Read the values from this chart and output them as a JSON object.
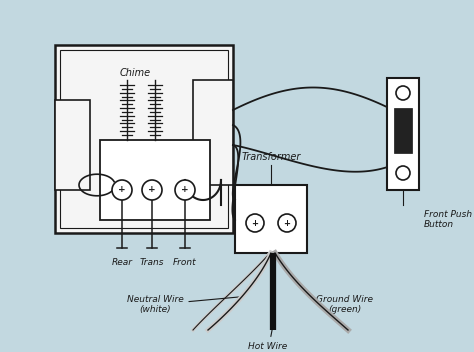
{
  "bg_color": "#c2d8e0",
  "line_color": "#1a1a1a",
  "box_fill": "#f5f5f5",
  "white": "#ffffff",
  "labels": {
    "chime": "Chime",
    "rear": "Rear",
    "trans": "Trans",
    "front": "Front",
    "transformer": "Transformer",
    "front_push_button": "Front Push\nButton",
    "neutral_wire": "Neutral Wire\n(white)",
    "hot_wire": "Hot Wire\n(black)",
    "ground_wire": "Ground Wire\n(green)"
  },
  "font_size": 7.0
}
